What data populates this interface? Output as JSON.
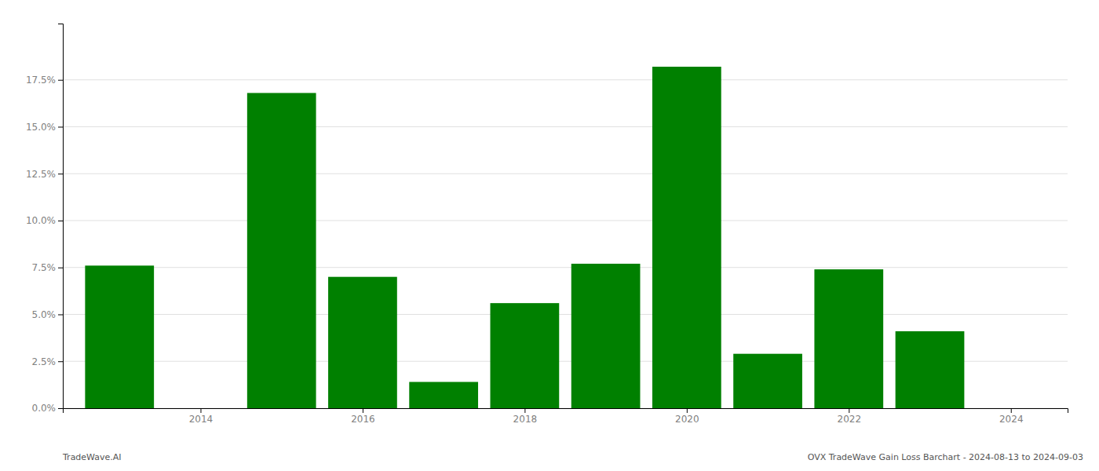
{
  "chart_data": {
    "type": "bar",
    "x": [
      2013,
      2015,
      2016,
      2017,
      2018,
      2019,
      2020,
      2021,
      2022,
      2023
    ],
    "values": [
      0.076,
      0.168,
      0.07,
      0.014,
      0.056,
      0.077,
      0.182,
      0.029,
      0.074,
      0.041
    ],
    "color": "#008000",
    "xlim": [
      2012.3,
      2024.7
    ],
    "xticks": [
      2014,
      2016,
      2018,
      2020,
      2022,
      2024
    ],
    "ylim": [
      0.0,
      0.205
    ],
    "yticks": [
      {
        "value": 0.0,
        "label": "0.0%"
      },
      {
        "value": 0.025,
        "label": "2.5%"
      },
      {
        "value": 0.05,
        "label": "5.0%"
      },
      {
        "value": 0.075,
        "label": "7.5%"
      },
      {
        "value": 0.1,
        "label": "10.0%"
      },
      {
        "value": 0.125,
        "label": "12.5%"
      },
      {
        "value": 0.15,
        "label": "15.0%"
      },
      {
        "value": 0.175,
        "label": "17.5%"
      }
    ],
    "grid": true,
    "annotations": [
      "TradeWave.AI",
      "OVX TradeWave Gain Loss Barchart - 2024-08-13 to 2024-09-03"
    ]
  }
}
